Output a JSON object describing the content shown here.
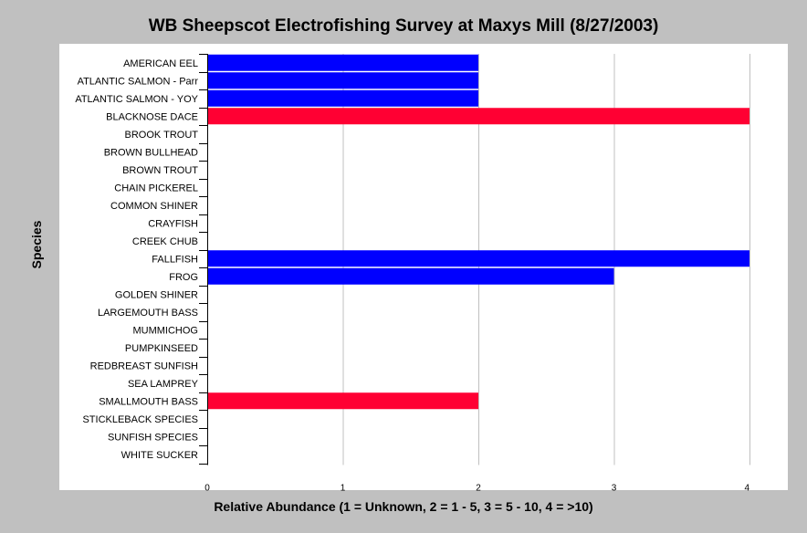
{
  "chart_data": {
    "type": "bar",
    "orientation": "horizontal",
    "title": "WB Sheepscot Electrofishing Survey at Maxys Mill (8/27/2003)",
    "xlabel": "Relative Abundance (1 = Unknown, 2 = 1 - 5, 3 = 5 - 10, 4 = >10)",
    "ylabel": "Species",
    "xlim": [
      0,
      4
    ],
    "xticks": [
      "0",
      "1",
      "2",
      "3",
      "4"
    ],
    "grid": "vertical",
    "categories": [
      "AMERICAN EEL",
      "ATLANTIC SALMON  - Parr",
      "ATLANTIC SALMON - YOY",
      "BLACKNOSE DACE",
      "BROOK TROUT",
      "BROWN BULLHEAD",
      "BROWN TROUT",
      "CHAIN PICKEREL",
      "COMMON SHINER",
      "CRAYFISH",
      "CREEK CHUB",
      "FALLFISH",
      "FROG",
      "GOLDEN SHINER",
      "LARGEMOUTH BASS",
      "MUMMICHOG",
      "PUMPKINSEED",
      "REDBREAST SUNFISH",
      "SEA LAMPREY",
      "SMALLMOUTH BASS",
      "STICKLEBACK SPECIES",
      "SUNFISH SPECIES",
      "WHITE SUCKER"
    ],
    "values": [
      2,
      2,
      2,
      4,
      null,
      null,
      null,
      null,
      null,
      null,
      null,
      4,
      3,
      null,
      null,
      null,
      null,
      null,
      null,
      2,
      null,
      null,
      null
    ],
    "bar_colors": [
      "#0000ff",
      "#0000ff",
      "#0000ff",
      "#ff0033",
      null,
      null,
      null,
      null,
      null,
      null,
      null,
      "#0000ff",
      "#0000ff",
      null,
      null,
      null,
      null,
      null,
      null,
      "#ff0033",
      null,
      null,
      null
    ],
    "colors": {
      "background": "#c0c0c0",
      "plot_background": "#ffffff",
      "grid": "#c0c0c0",
      "axis": "#000000"
    }
  }
}
